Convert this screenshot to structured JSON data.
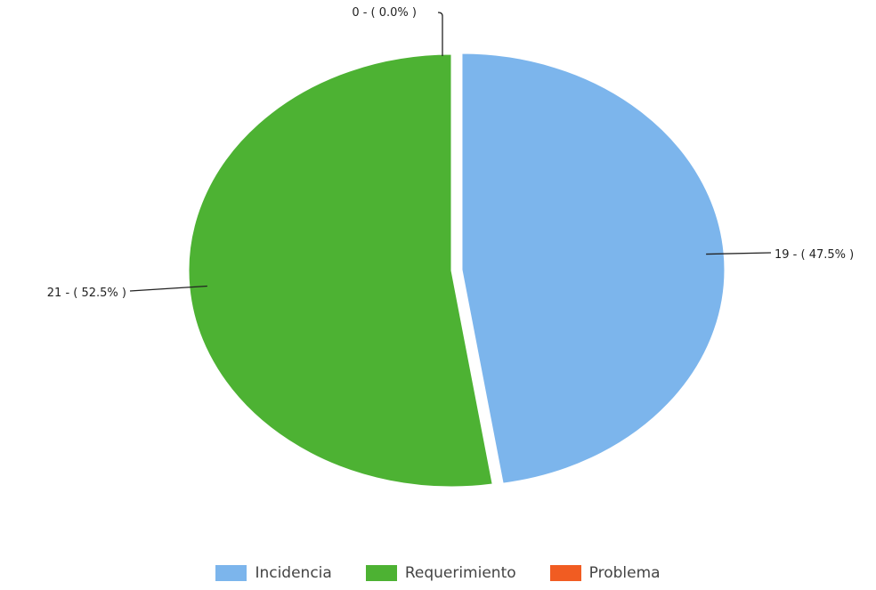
{
  "chart_data": {
    "type": "pie",
    "slices": [
      {
        "name": "Incidencia",
        "value": 19,
        "percent": 47.5,
        "label": "19 - ( 47.5% )",
        "color": "#7cb5ec"
      },
      {
        "name": "Requerimiento",
        "value": 21,
        "percent": 52.5,
        "label": "21 - ( 52.5% )",
        "color": "#4db233"
      },
      {
        "name": "Problema",
        "value": 0,
        "percent": 0.0,
        "label": "0 - ( 0.0% )",
        "color": "#f15c22"
      }
    ],
    "legend_position": "bottom-center",
    "exploded_slice": "Incidencia"
  },
  "legend": {
    "items": [
      {
        "label": "Incidencia",
        "color": "#7cb5ec"
      },
      {
        "label": "Requerimiento",
        "color": "#4db233"
      },
      {
        "label": "Problema",
        "color": "#f15c22"
      }
    ]
  }
}
